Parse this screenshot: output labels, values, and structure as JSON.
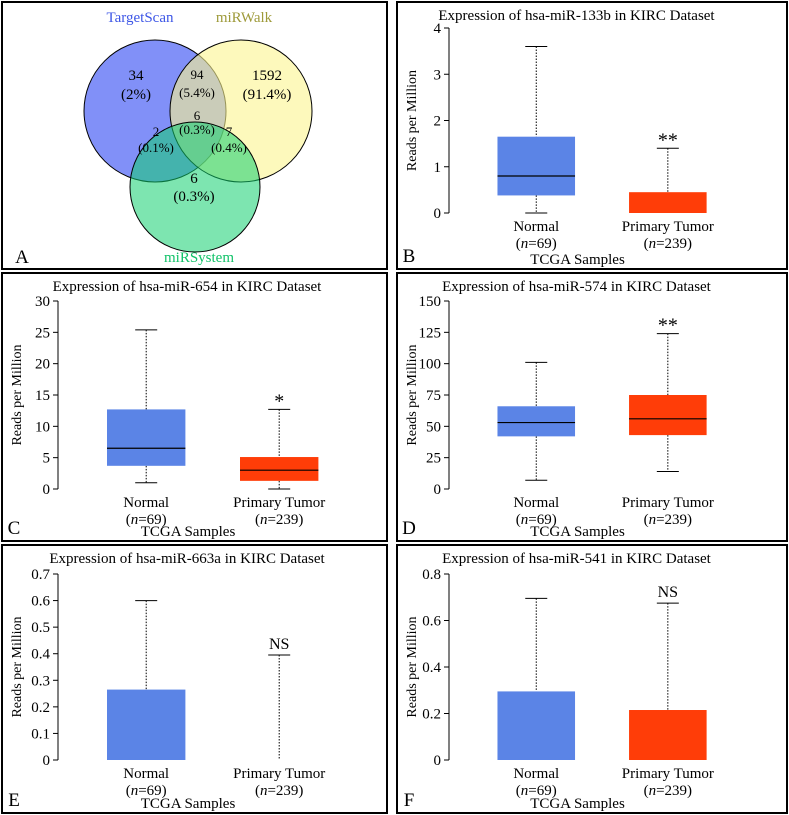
{
  "colors": {
    "normal": "#5b84e6",
    "tumor": "#ff3d08",
    "frame": "#000000",
    "venn_targetscan": "#7a8af8",
    "venn_mirwalk": "#fcf590",
    "venn_mirsystem": "#12d070",
    "label_targetscan": "#3d56e6",
    "label_mirwalk": "#9e9a3a",
    "label_mirsystem": "#10c268"
  },
  "venn": {
    "panel_letter": "A",
    "set_labels": {
      "targetscan": "TargetScan",
      "mirwalk": "miRWalk",
      "mirsystem": "miRSystem"
    },
    "regions": {
      "ts_only": {
        "count": "34",
        "pct": "(2%)"
      },
      "mw_only": {
        "count": "1592",
        "pct": "(91.4%)"
      },
      "ts_mw": {
        "count": "94",
        "pct": "(5.4%)"
      },
      "all": {
        "count": "6",
        "pct": "(0.3%)"
      },
      "ts_ms": {
        "count": "2",
        "pct": "(0.1%)"
      },
      "mw_ms": {
        "count": "7",
        "pct": "(0.4%)"
      },
      "ms_only": {
        "count": "6",
        "pct": "(0.3%)"
      }
    }
  },
  "chart_data": [
    {
      "panel": "B",
      "type": "box",
      "title": "Expression of hsa-miR-133b in KIRC Dataset",
      "ylabel": "Reads per Million",
      "xlabel": "TCGA Samples",
      "ylim": [
        0,
        4
      ],
      "yticks": [
        "0",
        "1",
        "2",
        "3",
        "4"
      ],
      "ytick_values": [
        0,
        1,
        2,
        3,
        4
      ],
      "categories": [
        "Normal",
        "Primary Tumor"
      ],
      "n_labels": [
        "69",
        "239"
      ],
      "n_prefix": "n",
      "series": [
        {
          "name": "Normal",
          "min": 0,
          "q1": 0.38,
          "median": 0.8,
          "q3": 1.65,
          "max": 3.6
        },
        {
          "name": "Primary Tumor",
          "min": 0,
          "q1": 0,
          "median": 0,
          "q3": 0.45,
          "max": 1.4
        }
      ],
      "significance": "**"
    },
    {
      "panel": "C",
      "type": "box",
      "title": "Expression of hsa-miR-654 in KIRC Dataset",
      "ylabel": "Reads per Million",
      "xlabel": "TCGA Samples",
      "ylim": [
        0,
        30
      ],
      "yticks": [
        "0",
        "5",
        "10",
        "15",
        "20",
        "25",
        "30"
      ],
      "ytick_values": [
        0,
        5,
        10,
        15,
        20,
        25,
        30
      ],
      "categories": [
        "Normal",
        "Primary Tumor"
      ],
      "n_labels": [
        "69",
        "239"
      ],
      "n_prefix": "n",
      "series": [
        {
          "name": "Normal",
          "min": 1.0,
          "q1": 3.7,
          "median": 6.5,
          "q3": 12.7,
          "max": 25.4
        },
        {
          "name": "Primary Tumor",
          "min": 0,
          "q1": 1.3,
          "median": 3.0,
          "q3": 5.1,
          "max": 12.7
        }
      ],
      "significance": "*"
    },
    {
      "panel": "D",
      "type": "box",
      "title": "Expression of hsa-miR-574 in KIRC Dataset",
      "ylabel": "Reads per Million",
      "xlabel": "TCGA Samples",
      "ylim": [
        0,
        150
      ],
      "yticks": [
        "0",
        "25",
        "50",
        "75",
        "100",
        "125",
        "150"
      ],
      "ytick_values": [
        0,
        25,
        50,
        75,
        100,
        125,
        150
      ],
      "categories": [
        "Normal",
        "Primary Tumor"
      ],
      "n_labels": [
        "69",
        "239"
      ],
      "n_prefix": "n",
      "series": [
        {
          "name": "Normal",
          "min": 7,
          "q1": 42,
          "median": 53,
          "q3": 66,
          "max": 101
        },
        {
          "name": "Primary Tumor",
          "min": 14,
          "q1": 43,
          "median": 56,
          "q3": 75,
          "max": 124
        }
      ],
      "significance": "**"
    },
    {
      "panel": "E",
      "type": "box",
      "title": "Expression of hsa-miR-663a in KIRC Dataset",
      "ylabel": "Reads per Million",
      "xlabel": "TCGA Samples",
      "ylim": [
        0,
        0.7
      ],
      "yticks": [
        "0",
        "0.1",
        "0.2",
        "0.3",
        "0.4",
        "0.5",
        "0.6",
        "0.7"
      ],
      "ytick_values": [
        0,
        0.1,
        0.2,
        0.3,
        0.4,
        0.5,
        0.6,
        0.7
      ],
      "categories": [
        "Normal",
        "Primary Tumor"
      ],
      "n_labels": [
        "69",
        "239"
      ],
      "n_prefix": "n",
      "series": [
        {
          "name": "Normal",
          "min": 0,
          "q1": 0,
          "median": 0,
          "q3": 0.265,
          "max": 0.6
        },
        {
          "name": "Primary Tumor",
          "min": 0,
          "q1": 0,
          "median": 0,
          "q3": 0,
          "max": 0.395
        }
      ],
      "significance": "NS"
    },
    {
      "panel": "F",
      "type": "box",
      "title": "Expression of hsa-miR-541 in KIRC Dataset",
      "ylabel": "Reads per Million",
      "xlabel": "TCGA Samples",
      "ylim": [
        0,
        0.8
      ],
      "yticks": [
        "0",
        "0.2",
        "0.4",
        "0.6",
        "0.8"
      ],
      "ytick_values": [
        0,
        0.2,
        0.4,
        0.6,
        0.8
      ],
      "categories": [
        "Normal",
        "Primary Tumor"
      ],
      "n_labels": [
        "69",
        "239"
      ],
      "n_prefix": "n",
      "series": [
        {
          "name": "Normal",
          "min": 0,
          "q1": 0,
          "median": 0,
          "q3": 0.295,
          "max": 0.695
        },
        {
          "name": "Primary Tumor",
          "min": 0,
          "q1": 0,
          "median": 0,
          "q3": 0.215,
          "max": 0.675
        }
      ],
      "significance": "NS"
    }
  ]
}
